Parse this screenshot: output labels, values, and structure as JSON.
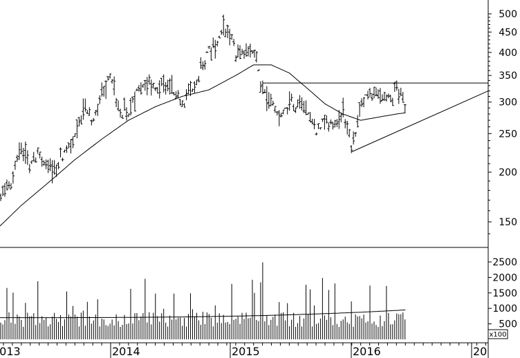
{
  "chart_data": [
    {
      "type": "ohlc",
      "scale": "log",
      "grid": false,
      "y_ticks": [
        150,
        200,
        250,
        300,
        350,
        400,
        450,
        500
      ],
      "ylim": [
        130,
        520
      ],
      "x_tick_labels": [
        "2013",
        "2014",
        "2015",
        "2016",
        "20"
      ],
      "price_path": [
        [
          "2012-12",
          160
        ],
        [
          "2013-02",
          195
        ],
        [
          "2013-03",
          235
        ],
        [
          "2013-04",
          210
        ],
        [
          "2013-05",
          225
        ],
        [
          "2013-06",
          200
        ],
        [
          "2013-08",
          225
        ],
        [
          "2013-09",
          240
        ],
        [
          "2013-10",
          290
        ],
        [
          "2013-11",
          275
        ],
        [
          "2013-12",
          310
        ],
        [
          "2014-01",
          350
        ],
        [
          "2014-02",
          290
        ],
        [
          "2014-03",
          280
        ],
        [
          "2014-04",
          320
        ],
        [
          "2014-05",
          340
        ],
        [
          "2014-06",
          320
        ],
        [
          "2014-07",
          340
        ],
        [
          "2014-08",
          325
        ],
        [
          "2014-09",
          300
        ],
        [
          "2014-10",
          325
        ],
        [
          "2014-11",
          360
        ],
        [
          "2014-12",
          400
        ],
        [
          "2015-01",
          430
        ],
        [
          "2015-02",
          470
        ],
        [
          "2015-03",
          400
        ],
        [
          "2015-04",
          400
        ],
        [
          "2015-05",
          410
        ],
        [
          "2015-06",
          320
        ],
        [
          "2015-07",
          300
        ],
        [
          "2015-08",
          270
        ],
        [
          "2015-09",
          305
        ],
        [
          "2015-10",
          290
        ],
        [
          "2015-11",
          290
        ],
        [
          "2015-12",
          250
        ],
        [
          "2016-01",
          270
        ],
        [
          "2016-02",
          265
        ],
        [
          "2016-03",
          290
        ],
        [
          "2016-04",
          230
        ],
        [
          "2016-05",
          295
        ],
        [
          "2016-06",
          320
        ],
        [
          "2016-07",
          310
        ],
        [
          "2016-08",
          300
        ],
        [
          "2016-09",
          320
        ],
        [
          "2016-10",
          300
        ]
      ],
      "moving_average": [
        [
          "2012-12",
          142
        ],
        [
          "2013-03",
          165
        ],
        [
          "2013-06",
          188
        ],
        [
          "2013-09",
          215
        ],
        [
          "2013-12",
          242
        ],
        [
          "2014-03",
          270
        ],
        [
          "2014-06",
          292
        ],
        [
          "2014-09",
          310
        ],
        [
          "2014-12",
          322
        ],
        [
          "2015-03",
          350
        ],
        [
          "2015-05",
          372
        ],
        [
          "2015-07",
          372
        ],
        [
          "2015-09",
          355
        ],
        [
          "2015-11",
          325
        ],
        [
          "2016-01",
          297
        ],
        [
          "2016-03",
          280
        ],
        [
          "2016-05",
          270
        ],
        [
          "2016-07",
          275
        ],
        [
          "2016-09",
          280
        ],
        [
          "2016-10",
          282
        ]
      ],
      "resistance_line": {
        "value": 335,
        "from": "2015-06",
        "to": "2017-02"
      },
      "support_line": {
        "from": [
          "2016-04",
          225
        ],
        "to": [
          "2017-02",
          320
        ]
      }
    },
    {
      "type": "bar",
      "y_ticks": [
        500,
        1000,
        1500,
        2000,
        2500
      ],
      "ylim": [
        0,
        2800
      ],
      "unit_label": "x100",
      "volume_ma_level": 700,
      "volume_ma_end": 950
    }
  ]
}
